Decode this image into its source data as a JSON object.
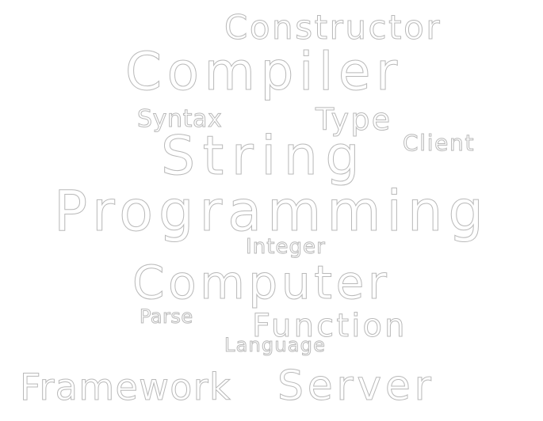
{
  "words": {
    "constructor": "Constructor",
    "compiler": "Compiler",
    "syntax": "Syntax",
    "type": "Type",
    "client": "Client",
    "string": "String",
    "programming": "Programming",
    "integer": "Integer",
    "computer": "Computer",
    "parse": "Parse",
    "function": "Function",
    "language": "Language",
    "framework": "Framework",
    "server": "Server"
  },
  "colors": {
    "background": "#ffffff",
    "text_fill": "#ffffff",
    "text_outline": "#b9b9b9"
  }
}
